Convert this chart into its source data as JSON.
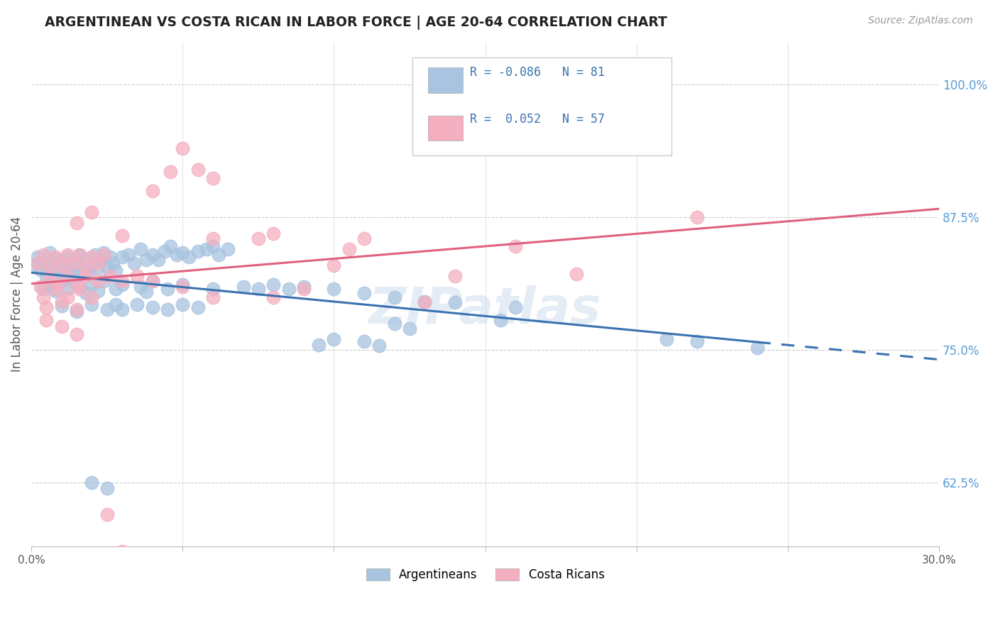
{
  "title": "ARGENTINEAN VS COSTA RICAN IN LABOR FORCE | AGE 20-64 CORRELATION CHART",
  "source": "Source: ZipAtlas.com",
  "ylabel": "In Labor Force | Age 20-64",
  "yticks": [
    0.625,
    0.75,
    0.875,
    1.0
  ],
  "ytick_labels": [
    "62.5%",
    "75.0%",
    "87.5%",
    "100.0%"
  ],
  "xmin": 0.0,
  "xmax": 0.3,
  "ymin": 0.565,
  "ymax": 1.04,
  "blue_color": "#a8c4e0",
  "pink_color": "#f4afc0",
  "blue_line_color": "#3a72b0",
  "pink_line_color": "#e06080",
  "watermark": "ZIPatlas",
  "blue_scatter": [
    [
      0.001,
      0.83
    ],
    [
      0.002,
      0.838
    ],
    [
      0.003,
      0.826
    ],
    [
      0.004,
      0.832
    ],
    [
      0.005,
      0.82
    ],
    [
      0.006,
      0.842
    ],
    [
      0.007,
      0.828
    ],
    [
      0.008,
      0.836
    ],
    [
      0.009,
      0.822
    ],
    [
      0.01,
      0.834
    ],
    [
      0.011,
      0.824
    ],
    [
      0.012,
      0.838
    ],
    [
      0.013,
      0.828
    ],
    [
      0.014,
      0.822
    ],
    [
      0.015,
      0.832
    ],
    [
      0.016,
      0.84
    ],
    [
      0.017,
      0.826
    ],
    [
      0.018,
      0.836
    ],
    [
      0.019,
      0.822
    ],
    [
      0.02,
      0.83
    ],
    [
      0.021,
      0.84
    ],
    [
      0.022,
      0.828
    ],
    [
      0.023,
      0.835
    ],
    [
      0.024,
      0.842
    ],
    [
      0.025,
      0.828
    ],
    [
      0.026,
      0.838
    ],
    [
      0.027,
      0.832
    ],
    [
      0.028,
      0.825
    ],
    [
      0.03,
      0.838
    ],
    [
      0.032,
      0.84
    ],
    [
      0.034,
      0.832
    ],
    [
      0.036,
      0.845
    ],
    [
      0.038,
      0.835
    ],
    [
      0.04,
      0.84
    ],
    [
      0.042,
      0.835
    ],
    [
      0.044,
      0.843
    ],
    [
      0.046,
      0.848
    ],
    [
      0.048,
      0.84
    ],
    [
      0.05,
      0.842
    ],
    [
      0.052,
      0.838
    ],
    [
      0.055,
      0.843
    ],
    [
      0.058,
      0.845
    ],
    [
      0.06,
      0.848
    ],
    [
      0.062,
      0.84
    ],
    [
      0.065,
      0.845
    ],
    [
      0.004,
      0.808
    ],
    [
      0.006,
      0.812
    ],
    [
      0.008,
      0.806
    ],
    [
      0.01,
      0.815
    ],
    [
      0.012,
      0.808
    ],
    [
      0.014,
      0.816
    ],
    [
      0.016,
      0.81
    ],
    [
      0.018,
      0.804
    ],
    [
      0.02,
      0.812
    ],
    [
      0.022,
      0.806
    ],
    [
      0.024,
      0.815
    ],
    [
      0.028,
      0.808
    ],
    [
      0.03,
      0.812
    ],
    [
      0.036,
      0.81
    ],
    [
      0.038,
      0.805
    ],
    [
      0.04,
      0.815
    ],
    [
      0.045,
      0.808
    ],
    [
      0.05,
      0.812
    ],
    [
      0.06,
      0.808
    ],
    [
      0.01,
      0.792
    ],
    [
      0.015,
      0.786
    ],
    [
      0.02,
      0.793
    ],
    [
      0.025,
      0.788
    ],
    [
      0.028,
      0.793
    ],
    [
      0.03,
      0.788
    ],
    [
      0.035,
      0.793
    ],
    [
      0.04,
      0.79
    ],
    [
      0.045,
      0.788
    ],
    [
      0.05,
      0.793
    ],
    [
      0.055,
      0.79
    ],
    [
      0.07,
      0.81
    ],
    [
      0.075,
      0.808
    ],
    [
      0.08,
      0.812
    ],
    [
      0.085,
      0.808
    ],
    [
      0.09,
      0.81
    ],
    [
      0.1,
      0.808
    ],
    [
      0.11,
      0.804
    ],
    [
      0.12,
      0.8
    ],
    [
      0.13,
      0.796
    ],
    [
      0.14,
      0.795
    ],
    [
      0.16,
      0.79
    ],
    [
      0.02,
      0.625
    ],
    [
      0.025,
      0.62
    ],
    [
      0.12,
      0.775
    ],
    [
      0.125,
      0.77
    ],
    [
      0.11,
      0.758
    ],
    [
      0.115,
      0.754
    ],
    [
      0.1,
      0.76
    ],
    [
      0.095,
      0.755
    ],
    [
      0.155,
      0.778
    ],
    [
      0.21,
      0.76
    ],
    [
      0.22,
      0.758
    ],
    [
      0.24,
      0.752
    ]
  ],
  "pink_scatter": [
    [
      0.002,
      0.832
    ],
    [
      0.004,
      0.84
    ],
    [
      0.006,
      0.828
    ],
    [
      0.008,
      0.838
    ],
    [
      0.01,
      0.83
    ],
    [
      0.012,
      0.84
    ],
    [
      0.014,
      0.832
    ],
    [
      0.016,
      0.84
    ],
    [
      0.018,
      0.828
    ],
    [
      0.02,
      0.838
    ],
    [
      0.022,
      0.832
    ],
    [
      0.024,
      0.84
    ],
    [
      0.003,
      0.81
    ],
    [
      0.006,
      0.818
    ],
    [
      0.009,
      0.812
    ],
    [
      0.012,
      0.82
    ],
    [
      0.015,
      0.812
    ],
    [
      0.018,
      0.82
    ],
    [
      0.022,
      0.815
    ],
    [
      0.026,
      0.82
    ],
    [
      0.03,
      0.815
    ],
    [
      0.035,
      0.82
    ],
    [
      0.04,
      0.815
    ],
    [
      0.004,
      0.8
    ],
    [
      0.008,
      0.808
    ],
    [
      0.012,
      0.8
    ],
    [
      0.016,
      0.808
    ],
    [
      0.02,
      0.8
    ],
    [
      0.005,
      0.79
    ],
    [
      0.01,
      0.796
    ],
    [
      0.015,
      0.788
    ],
    [
      0.04,
      0.9
    ],
    [
      0.046,
      0.918
    ],
    [
      0.05,
      0.94
    ],
    [
      0.055,
      0.92
    ],
    [
      0.06,
      0.912
    ],
    [
      0.015,
      0.87
    ],
    [
      0.02,
      0.88
    ],
    [
      0.03,
      0.858
    ],
    [
      0.06,
      0.855
    ],
    [
      0.075,
      0.855
    ],
    [
      0.08,
      0.86
    ],
    [
      0.105,
      0.845
    ],
    [
      0.11,
      0.855
    ],
    [
      0.16,
      0.848
    ],
    [
      0.22,
      0.875
    ],
    [
      0.005,
      0.778
    ],
    [
      0.01,
      0.772
    ],
    [
      0.015,
      0.765
    ],
    [
      0.08,
      0.8
    ],
    [
      0.09,
      0.808
    ],
    [
      0.14,
      0.82
    ],
    [
      0.18,
      0.822
    ],
    [
      0.1,
      0.83
    ],
    [
      0.05,
      0.81
    ],
    [
      0.06,
      0.8
    ],
    [
      0.025,
      0.595
    ],
    [
      0.03,
      0.56
    ],
    [
      0.13,
      0.795
    ]
  ]
}
